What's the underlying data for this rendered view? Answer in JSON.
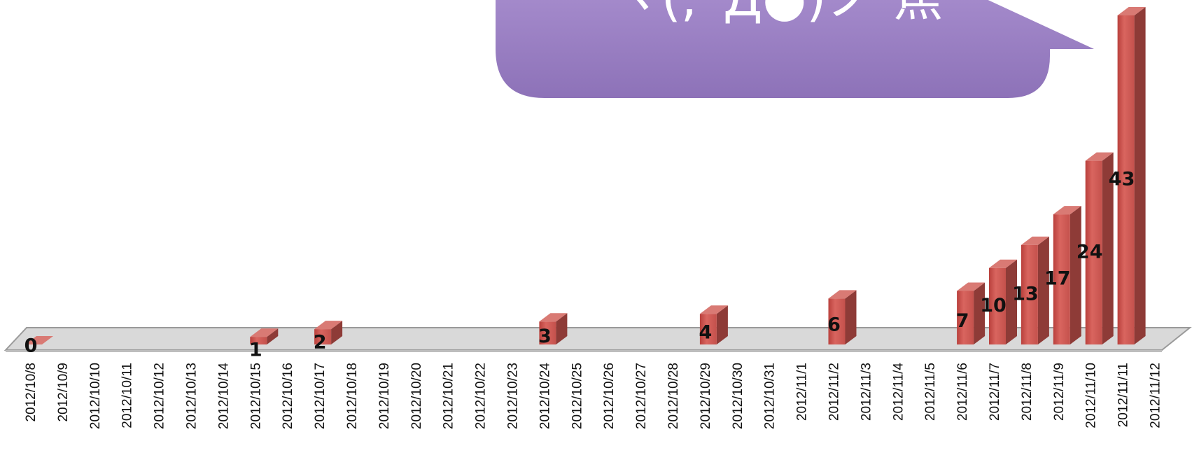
{
  "chart_data": {
    "type": "bar3d",
    "annotation": "ヽ(;´Д●)ノ 焦",
    "categories": [
      "2012/10/8",
      "2012/10/9",
      "2012/10/10",
      "2012/10/11",
      "2012/10/12",
      "2012/10/13",
      "2012/10/14",
      "2012/10/15",
      "2012/10/16",
      "2012/10/17",
      "2012/10/18",
      "2012/10/19",
      "2012/10/20",
      "2012/10/21",
      "2012/10/22",
      "2012/10/23",
      "2012/10/24",
      "2012/10/25",
      "2012/10/26",
      "2012/10/27",
      "2012/10/28",
      "2012/10/29",
      "2012/10/30",
      "2012/10/31",
      "2012/11/1",
      "2012/11/2",
      "2012/11/3",
      "2012/11/4",
      "2012/11/5",
      "2012/11/6",
      "2012/11/7",
      "2012/11/8",
      "2012/11/9",
      "2012/11/10",
      "2012/11/11",
      "2012/11/12"
    ],
    "values": [
      0,
      null,
      null,
      null,
      null,
      null,
      null,
      1,
      null,
      2,
      null,
      null,
      null,
      null,
      null,
      null,
      3,
      null,
      null,
      null,
      null,
      4,
      null,
      null,
      null,
      6,
      null,
      null,
      null,
      7,
      10,
      13,
      17,
      24,
      43,
      null
    ],
    "color": "#c0504d"
  }
}
